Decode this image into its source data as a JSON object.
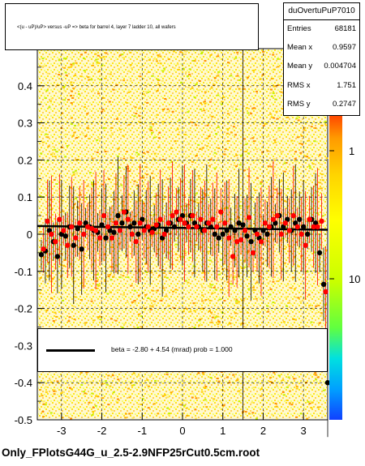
{
  "chart_data": {
    "type": "scatter",
    "title": "<(u - uP)/uP> versus -uP => beta for barrel 4, layer 7 ladder 10, all wafers",
    "xlim": [
      -3.6,
      3.6
    ],
    "ylim": [
      -0.5,
      0.5
    ],
    "x_ticks": [
      "-3",
      "-2",
      "-1",
      "0",
      "1",
      "2",
      "3"
    ],
    "y_ticks": [
      "-0.5",
      "-0.4",
      "-0.3",
      "-0.2",
      "-0.1",
      "0",
      "0.1",
      "0.2",
      "0.3",
      "0.4"
    ],
    "z_ticks": [
      "1",
      "10"
    ],
    "grid": true,
    "colorscale": "logarithmic",
    "series": [
      {
        "color": "#000000",
        "x": [
          -3.5,
          -3.4,
          -3.3,
          -3.2,
          -3.1,
          -3.0,
          -2.9,
          -2.8,
          -2.7,
          -2.6,
          -2.5,
          -2.4,
          -2.3,
          -2.2,
          -2.1,
          -2.0,
          -1.9,
          -1.8,
          -1.7,
          -1.6,
          -1.5,
          -1.4,
          -1.3,
          -1.2,
          -1.1,
          -1.0,
          -0.9,
          -0.8,
          -0.7,
          -0.6,
          -0.5,
          -0.4,
          -0.3,
          -0.2,
          -0.1,
          0.0,
          0.1,
          0.2,
          0.3,
          0.4,
          0.5,
          0.6,
          0.7,
          0.8,
          0.9,
          1.0,
          1.1,
          1.2,
          1.3,
          1.4,
          1.5,
          1.6,
          1.7,
          1.8,
          1.9,
          2.0,
          2.1,
          2.2,
          2.3,
          2.4,
          2.5,
          2.6,
          2.7,
          2.8,
          2.9,
          3.0,
          3.1,
          3.2,
          3.3,
          3.4,
          3.5,
          3.6
        ],
        "y": [
          -0.055,
          -0.045,
          0.01,
          -0.02,
          -0.06,
          0.0,
          -0.005,
          0.02,
          -0.03,
          0.015,
          -0.04,
          0.03,
          0.02,
          0.01,
          0.005,
          0.025,
          -0.01,
          0.01,
          0.005,
          0.05,
          0.03,
          0.06,
          0.02,
          0.03,
          0.0,
          0.04,
          0.02,
          0.01,
          0.015,
          0.025,
          -0.01,
          0.01,
          0.03,
          0.02,
          0.04,
          0.05,
          0.03,
          0.05,
          0.03,
          0.02,
          0.01,
          0.03,
          0.02,
          0.0,
          -0.01,
          0.0,
          0.01,
          0.02,
          0.01,
          0.03,
          0.025,
          -0.005,
          -0.02,
          0.01,
          -0.01,
          0.01,
          0.0,
          0.02,
          0.03,
          0.05,
          0.02,
          0.04,
          0.01,
          0.03,
          0.04,
          0.02,
          0.0,
          0.04,
          0.03,
          -0.05,
          -0.135,
          -0.4
        ]
      },
      {
        "color": "#ff0000",
        "x": [
          -3.45,
          -3.35,
          -3.25,
          -3.15,
          -3.05,
          -2.95,
          -2.85,
          -2.75,
          -2.65,
          -2.55,
          -2.45,
          -2.35,
          -2.25,
          -2.15,
          -2.05,
          -1.95,
          -1.85,
          -1.75,
          -1.65,
          -1.55,
          -1.45,
          -1.35,
          -1.25,
          -1.15,
          -1.05,
          -0.95,
          -0.85,
          -0.75,
          -0.65,
          -0.55,
          -0.45,
          -0.35,
          -0.25,
          -0.15,
          -0.05,
          0.05,
          0.15,
          0.25,
          0.35,
          0.45,
          0.55,
          0.65,
          0.75,
          0.85,
          0.95,
          1.05,
          1.15,
          1.25,
          1.35,
          1.45,
          1.55,
          1.65,
          1.75,
          1.85,
          1.95,
          2.05,
          2.15,
          2.25,
          2.35,
          2.45,
          2.55,
          2.65,
          2.75,
          2.85,
          2.95,
          3.05,
          3.15,
          3.25,
          3.35,
          3.45,
          3.55
        ],
        "y": [
          -0.04,
          0.035,
          0.0,
          -0.02,
          0.04,
          0.01,
          -0.03,
          0.02,
          -0.01,
          0.03,
          0.0,
          0.02,
          0.015,
          0.01,
          -0.01,
          0.05,
          0.02,
          -0.01,
          0.03,
          0.01,
          0.06,
          0.04,
          0.0,
          -0.02,
          0.03,
          0.01,
          0.02,
          0.005,
          0.025,
          0.04,
          0.0,
          0.03,
          0.05,
          0.06,
          0.04,
          0.03,
          0.02,
          0.05,
          0.02,
          0.04,
          0.01,
          0.03,
          0.04,
          0.02,
          0.06,
          0.03,
          -0.01,
          -0.06,
          -0.02,
          -0.015,
          0.01,
          0.045,
          -0.05,
          0.0,
          -0.02,
          0.03,
          0.02,
          0.04,
          0.05,
          0.0,
          0.03,
          0.01,
          0.05,
          0.02,
          0.0,
          -0.03,
          0.04,
          0.02,
          0.02,
          0.035,
          -0.155
        ]
      }
    ],
    "fit_line": {
      "x": [
        -3.6,
        3.6
      ],
      "y": [
        0.022,
        0.012
      ]
    }
  },
  "stats": {
    "name": "duOvertuPuP7010",
    "rows": [
      {
        "key": "Entries",
        "value": "68181"
      },
      {
        "key": "Mean x",
        "value": "0.9597"
      },
      {
        "key": "Mean y",
        "value": "0.004704"
      },
      {
        "key": "RMS x",
        "value": "1.751"
      },
      {
        "key": "RMS y",
        "value": "0.2747"
      }
    ]
  },
  "fit_legend": {
    "text": "beta =    -2.80 +   4.54 (mrad) prob = 1.000"
  },
  "footer": {
    "filename": "Only_FPlotsG44G_u_2.5-2.9NFP25rCut0.5cm.root"
  }
}
